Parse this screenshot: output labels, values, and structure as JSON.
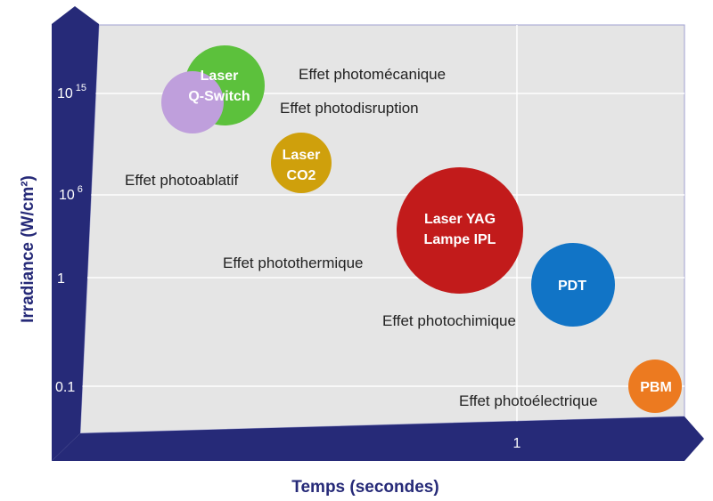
{
  "axes": {
    "y_title": "Irradiance (W/cm²)",
    "x_title": "Temps (secondes)",
    "y_ticks": [
      {
        "base": "10",
        "exp": "15"
      },
      {
        "base": "10",
        "exp": "6"
      },
      {
        "base": "1",
        "exp": ""
      },
      {
        "base": "0.1",
        "exp": ""
      }
    ],
    "x_ticks": [
      "1"
    ]
  },
  "bubbles": [
    {
      "line1": "Laser",
      "line2": "Q-Switch",
      "color": "#5cc13c"
    },
    {
      "line1": "",
      "line2": "",
      "color": "#bf9fdc"
    },
    {
      "line1": "Laser",
      "line2": "CO2",
      "color": "#cfa00c"
    },
    {
      "line1": "Laser YAG",
      "line2": "Lampe IPL",
      "color": "#c21b1b"
    },
    {
      "line1": "PDT",
      "line2": "",
      "color": "#1174c6"
    },
    {
      "line1": "PBM",
      "line2": "",
      "color": "#ec7a20"
    }
  ],
  "effects": [
    "Effet photomécanique",
    "Effet photodisruption",
    "Effet photoablatif",
    "Effet photothermique",
    "Effet photochimique",
    "Effet photoélectrique"
  ],
  "colors": {
    "axis": "#262a78",
    "plot_bg": "#e5e5e5",
    "grid": "#ffffff"
  }
}
